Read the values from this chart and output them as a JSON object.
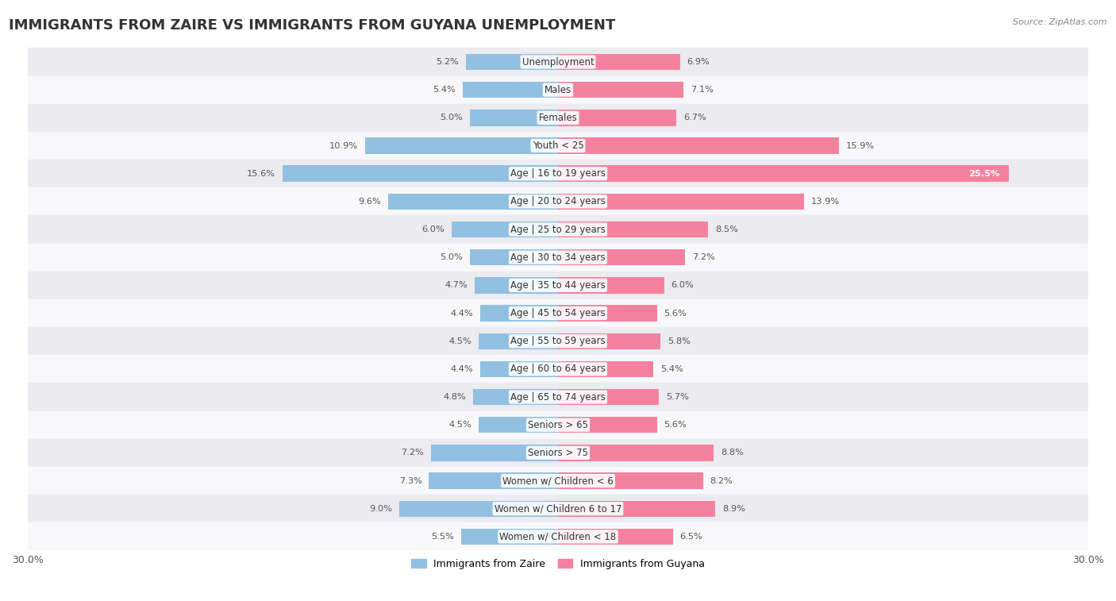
{
  "title": "IMMIGRANTS FROM ZAIRE VS IMMIGRANTS FROM GUYANA UNEMPLOYMENT",
  "source": "Source: ZipAtlas.com",
  "categories": [
    "Unemployment",
    "Males",
    "Females",
    "Youth < 25",
    "Age | 16 to 19 years",
    "Age | 20 to 24 years",
    "Age | 25 to 29 years",
    "Age | 30 to 34 years",
    "Age | 35 to 44 years",
    "Age | 45 to 54 years",
    "Age | 55 to 59 years",
    "Age | 60 to 64 years",
    "Age | 65 to 74 years",
    "Seniors > 65",
    "Seniors > 75",
    "Women w/ Children < 6",
    "Women w/ Children 6 to 17",
    "Women w/ Children < 18"
  ],
  "zaire_values": [
    5.2,
    5.4,
    5.0,
    10.9,
    15.6,
    9.6,
    6.0,
    5.0,
    4.7,
    4.4,
    4.5,
    4.4,
    4.8,
    4.5,
    7.2,
    7.3,
    9.0,
    5.5
  ],
  "guyana_values": [
    6.9,
    7.1,
    6.7,
    15.9,
    25.5,
    13.9,
    8.5,
    7.2,
    6.0,
    5.6,
    5.8,
    5.4,
    5.7,
    5.6,
    8.8,
    8.2,
    8.9,
    6.5
  ],
  "zaire_color": "#92c0e0",
  "guyana_color": "#f4829e",
  "bg_row_light": "#ebebf0",
  "bg_row_white": "#f8f8fa",
  "axis_max": 30.0,
  "bar_height": 0.58,
  "legend_zaire": "Immigrants from Zaire",
  "legend_guyana": "Immigrants from Guyana",
  "title_fontsize": 13,
  "label_fontsize": 8.5,
  "value_fontsize": 8.2,
  "source_fontsize": 8
}
